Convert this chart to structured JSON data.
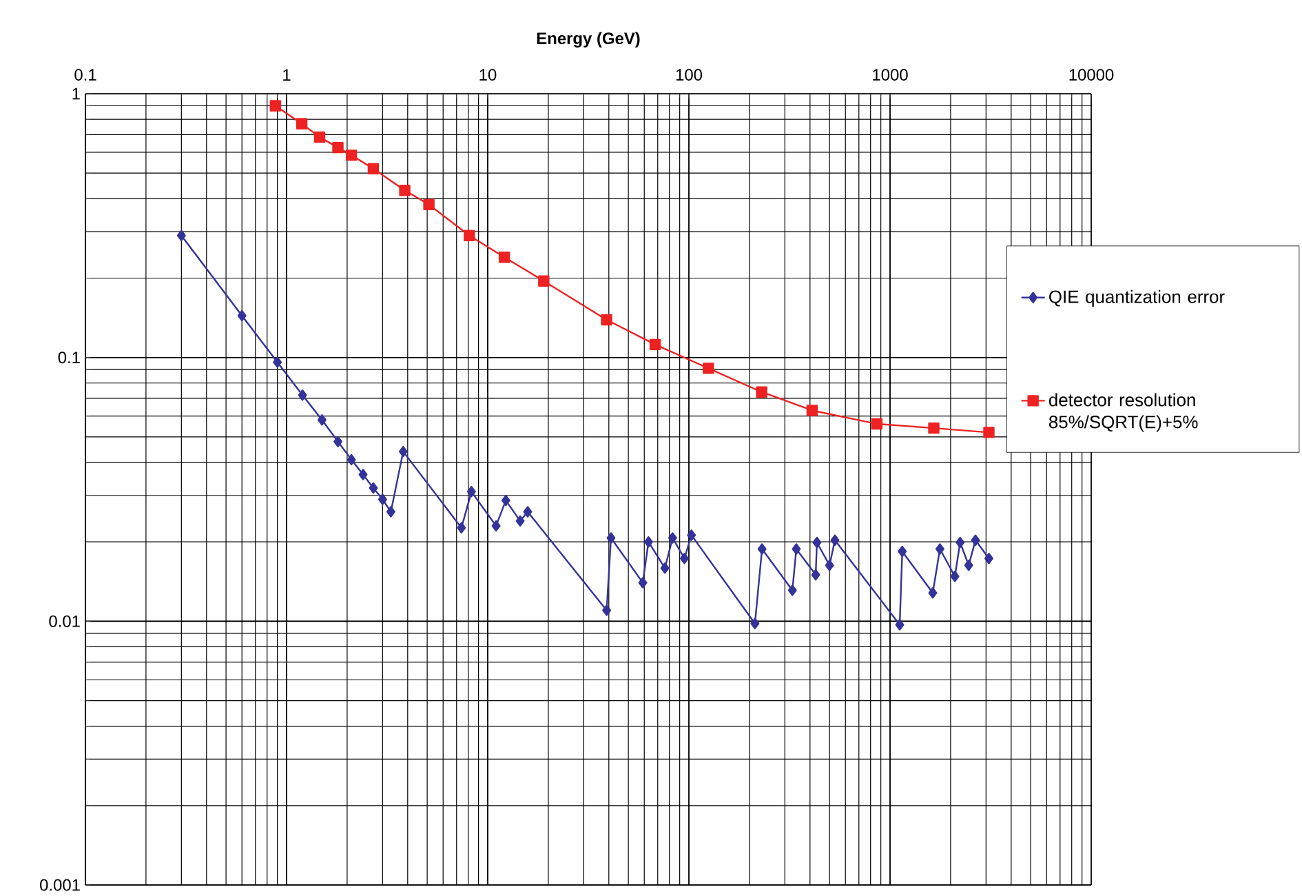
{
  "chart_data": {
    "type": "line",
    "xlabel": "Energy (GeV)",
    "log": "xy",
    "grid": true,
    "legend": "right",
    "xlim": [
      0.1,
      10000
    ],
    "ylim": [
      0.001,
      1
    ],
    "xticks": [
      0.1,
      1,
      10,
      100,
      1000,
      10000
    ],
    "yticks": [
      0.001,
      0.01,
      0.1,
      1
    ],
    "series": [
      {
        "name": "QIE quantization error",
        "color": "#333399",
        "marker": "diamond",
        "x": [
          0.3,
          0.6,
          0.9,
          1.2,
          1.5,
          1.8,
          2.1,
          2.4,
          2.7,
          3.0,
          3.3,
          3.8,
          7.4,
          8.3,
          11,
          12.3,
          14.5,
          15.8,
          39,
          41,
          59,
          63,
          76,
          83,
          95,
          103,
          213,
          231,
          327,
          342,
          427,
          433,
          500,
          532,
          1117,
          1150,
          1630,
          1770,
          2100,
          2230,
          2460,
          2660,
          3100
        ],
        "values": [
          0.29,
          0.144,
          0.096,
          0.072,
          0.058,
          0.048,
          0.041,
          0.036,
          0.032,
          0.029,
          0.026,
          0.044,
          0.0226,
          0.031,
          0.023,
          0.0287,
          0.024,
          0.026,
          0.011,
          0.0207,
          0.014,
          0.02,
          0.0159,
          0.0207,
          0.0173,
          0.0212,
          0.0098,
          0.0188,
          0.0131,
          0.0188,
          0.015,
          0.0199,
          0.0163,
          0.0203,
          0.0097,
          0.0184,
          0.0128,
          0.0188,
          0.0148,
          0.0199,
          0.0163,
          0.0203,
          0.0173
        ]
      },
      {
        "name": "detector resolution 85%/SQRT(E)+5%",
        "color": "#ee2222",
        "marker": "square",
        "x": [
          0.88,
          1.19,
          1.46,
          1.8,
          2.1,
          2.7,
          3.87,
          5.1,
          8.1,
          12.1,
          19,
          39,
          68,
          125,
          230,
          410,
          860,
          1650,
          3100
        ],
        "values": [
          0.9,
          0.77,
          0.685,
          0.625,
          0.585,
          0.52,
          0.43,
          0.38,
          0.29,
          0.24,
          0.195,
          0.139,
          0.112,
          0.091,
          0.074,
          0.063,
          0.056,
          0.054,
          0.052
        ]
      }
    ]
  }
}
